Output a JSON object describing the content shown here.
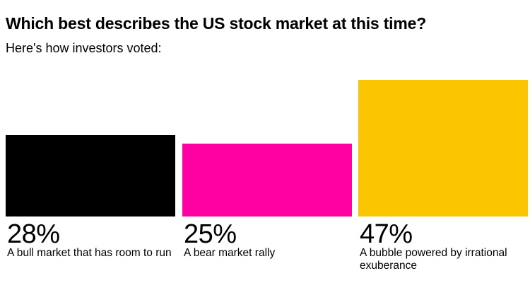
{
  "title": "Which best describes the US stock market at this time?",
  "subtitle": "Here's how investors voted:",
  "chart_data": {
    "type": "bar",
    "title": "Which best describes the US stock market at this time?",
    "subtitle": "Here's how investors voted:",
    "categories": [
      "A bull market that has room to run",
      "A bear market rally",
      "A bubble powered by irrational exuberance"
    ],
    "values": [
      28,
      25,
      47
    ],
    "value_labels": [
      "28%",
      "25%",
      "47%"
    ],
    "unit": "%",
    "colors": [
      "#000000",
      "#ff00a2",
      "#fbc500"
    ],
    "xlabel": "",
    "ylabel": "",
    "ylim": [
      0,
      47
    ],
    "grid": false,
    "legend": "none"
  }
}
